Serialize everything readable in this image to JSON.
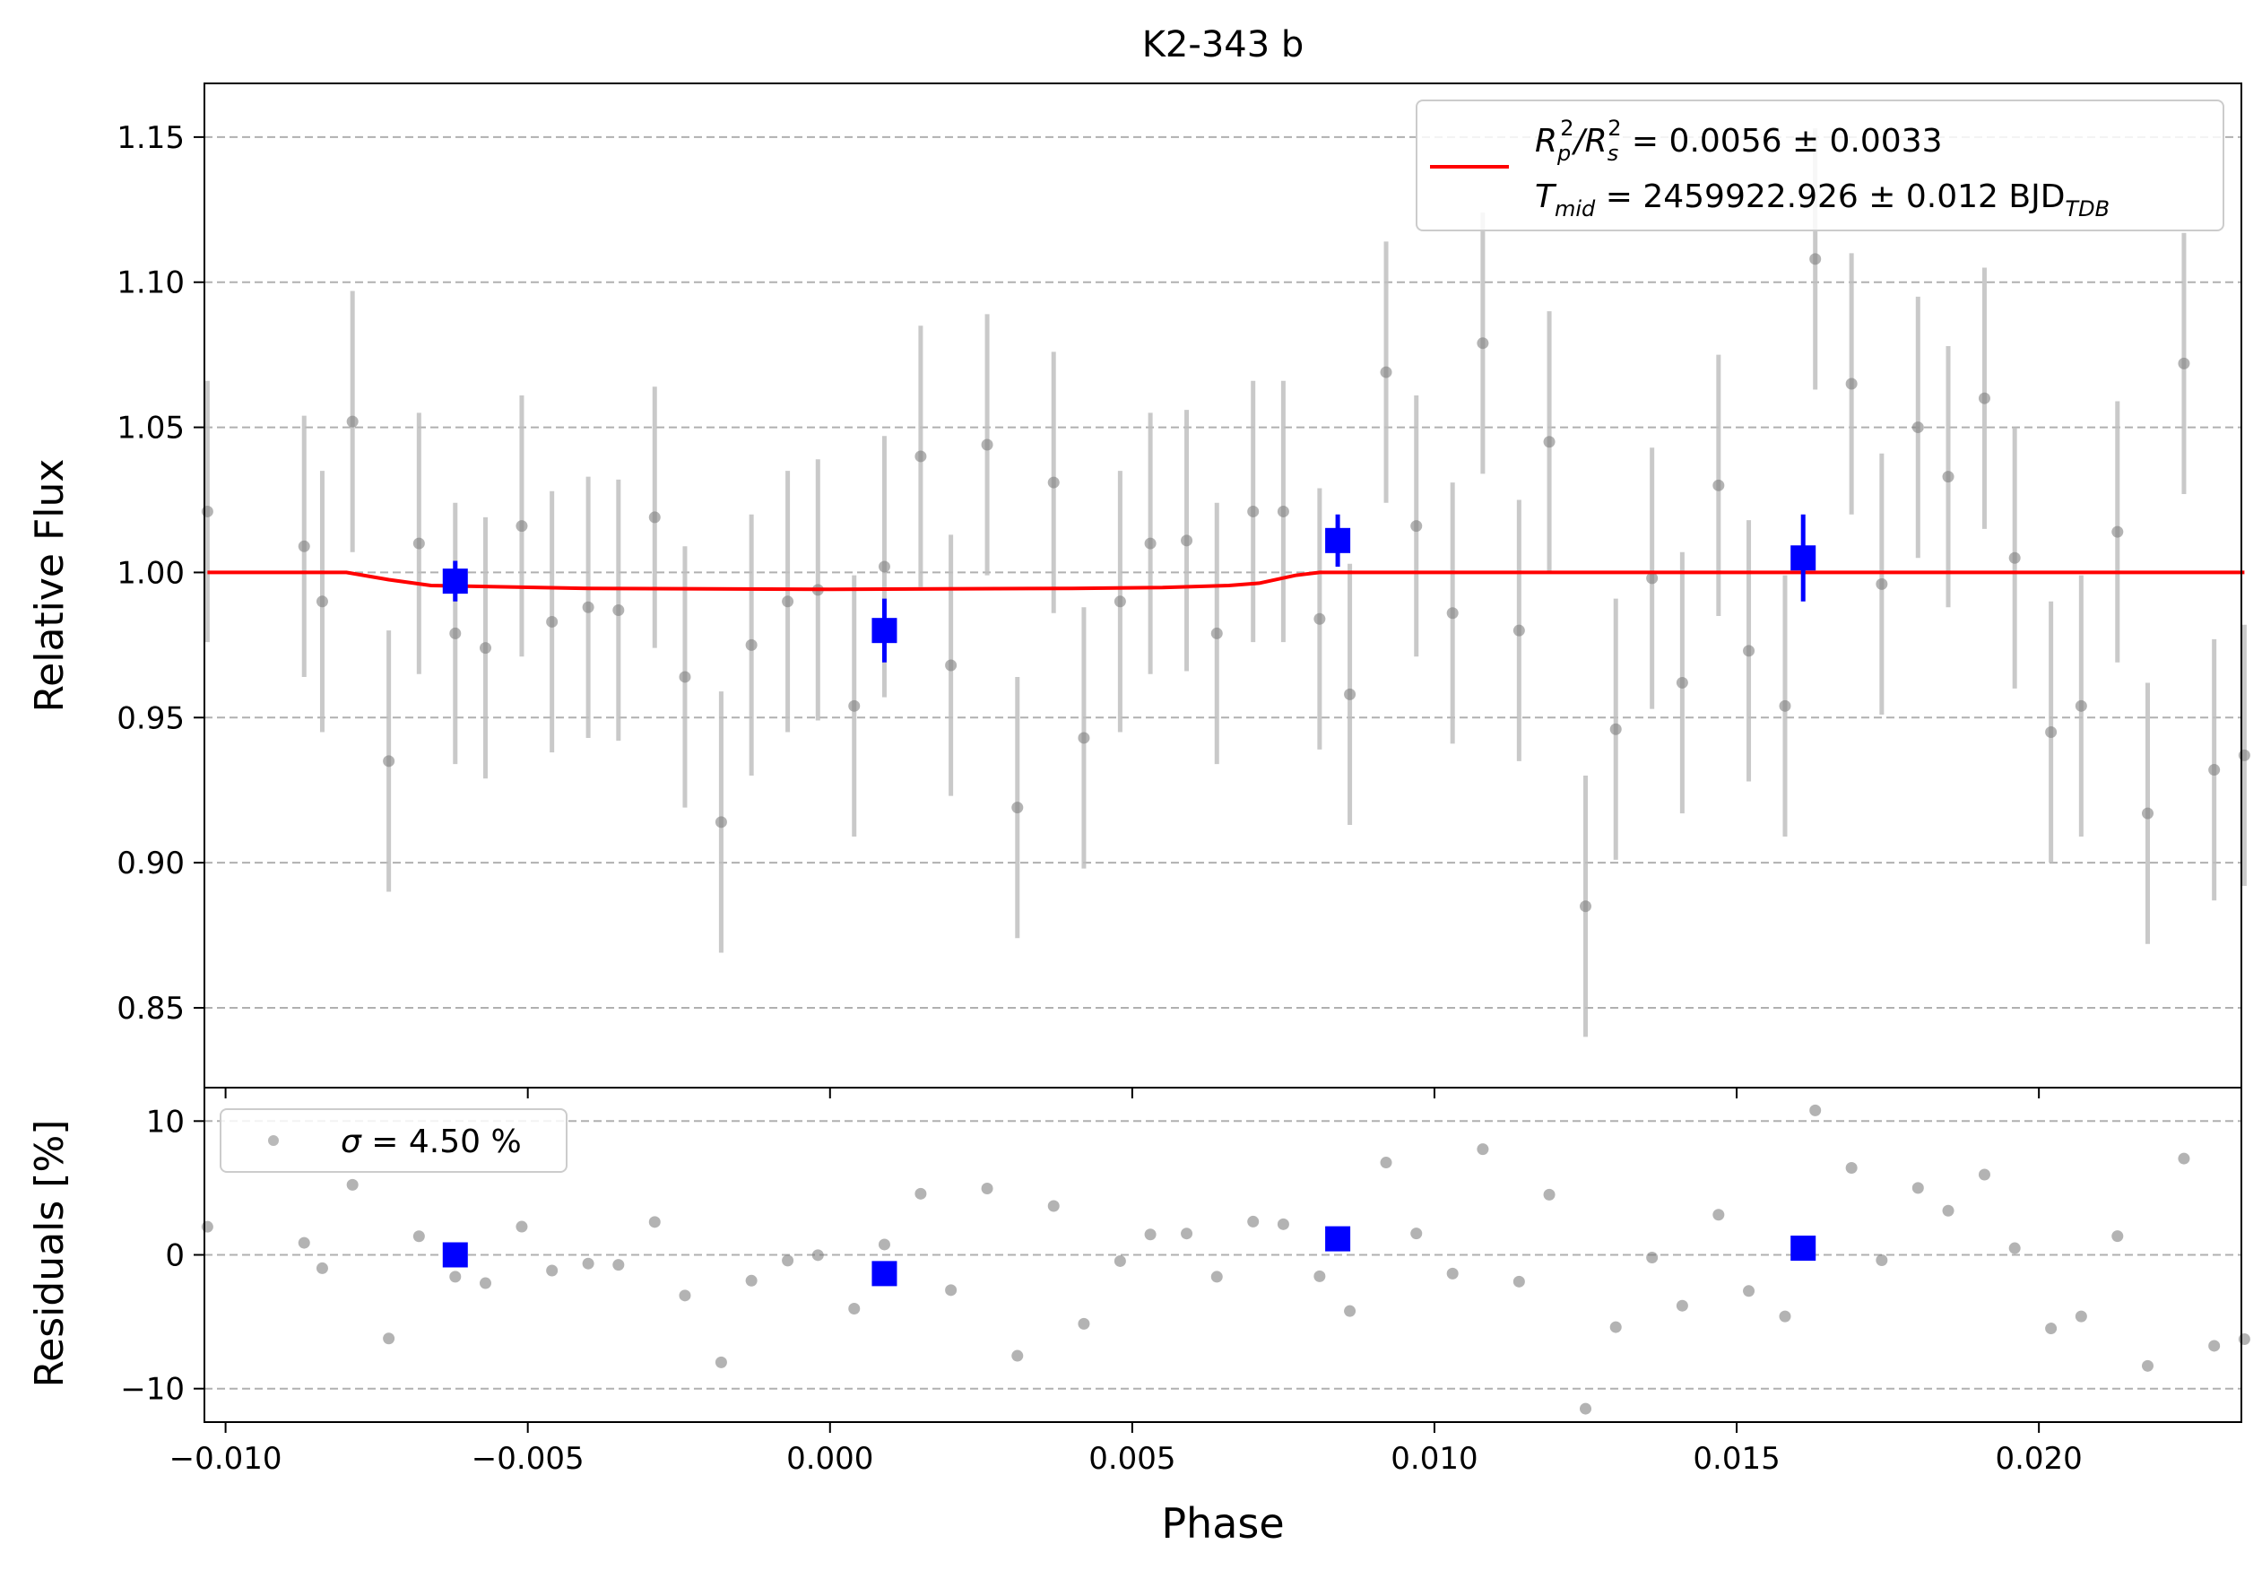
{
  "chart_data": [
    {
      "type": "scatter",
      "title": "K2-343 b",
      "xlabel": "",
      "ylabel": "Relative Flux",
      "xlim": [
        -0.01035,
        0.02335
      ],
      "ylim": [
        0.8225,
        1.1685
      ],
      "xticks": [
        -0.01,
        -0.005,
        0.0,
        0.005,
        0.01,
        0.015,
        0.02
      ],
      "yticks": [
        0.85,
        0.9,
        0.95,
        1.0,
        1.05,
        1.1,
        1.15
      ],
      "grid": "horizontal dashed",
      "legend_position": "top-right",
      "legend": {
        "line1_main": "R",
        "line1_sub_p": "p",
        "line1_sup": "2",
        "line1_sep": "/R",
        "line1_sub_s": "s",
        "line1_rest": " = 0.0056 ± 0.0033",
        "line2_main": "T",
        "line2_sub": "mid",
        "line2_rest": " = 2459922.926 ± 0.012 BJD",
        "line2_sub2": "TDB"
      },
      "colors": {
        "data": "#808080",
        "errorbar": "#c0c0c0",
        "binned": "#0000ff",
        "model": "#ff0000",
        "grid": "#b0b0b0"
      },
      "data": {
        "x": [
          -0.0103,
          -0.0087,
          -0.0084,
          -0.0079,
          -0.0073,
          -0.0068,
          -0.0062,
          -0.0057,
          -0.0051,
          -0.0046,
          -0.004,
          -0.0035,
          -0.0029,
          -0.0024,
          -0.0018,
          -0.0013,
          -0.0007,
          -0.0002,
          0.0004,
          0.0009,
          0.0015,
          0.002,
          0.0026,
          0.0031,
          0.0037,
          0.0042,
          0.0048,
          0.0053,
          0.0059,
          0.0064,
          0.007,
          0.0075,
          0.0081,
          0.0086,
          0.0092,
          0.0097,
          0.0103,
          0.0108,
          0.0114,
          0.0119,
          0.0125,
          0.013,
          0.0136,
          0.0141,
          0.0147,
          0.0152,
          0.0158,
          0.0163,
          0.0169,
          0.0174,
          0.018,
          0.0185,
          0.0191,
          0.0196,
          0.0202,
          0.0207,
          0.0213,
          0.0218,
          0.0224,
          0.0229,
          0.0234
        ],
        "y": [
          1.021,
          1.009,
          0.99,
          1.052,
          0.935,
          1.01,
          0.979,
          0.974,
          1.016,
          0.983,
          0.988,
          0.987,
          1.019,
          0.964,
          0.914,
          0.975,
          0.99,
          0.994,
          0.954,
          1.002,
          1.04,
          0.968,
          1.044,
          0.919,
          1.031,
          0.943,
          0.99,
          1.01,
          1.011,
          0.979,
          1.021,
          1.021,
          0.984,
          0.958,
          1.069,
          1.016,
          0.986,
          1.079,
          0.98,
          1.045,
          0.885,
          0.946,
          0.998,
          0.962,
          1.03,
          0.973,
          0.954,
          1.108,
          1.065,
          0.996,
          1.05,
          1.033,
          1.06,
          1.005,
          0.945,
          0.954,
          1.014,
          0.917,
          1.072,
          0.932,
          0.937
        ],
        "yerr": 0.045
      },
      "binned": {
        "x": [
          -0.0062,
          0.0009,
          0.0084,
          0.0161
        ],
        "y": [
          0.997,
          0.98,
          1.011,
          1.005
        ],
        "yerr": [
          0.007,
          0.011,
          0.009,
          0.015
        ]
      },
      "model": {
        "x": [
          -0.0103,
          -0.008,
          -0.0073,
          -0.0066,
          -0.004,
          0.0,
          0.004,
          0.0055,
          0.0066,
          0.0071,
          0.0077,
          0.0081,
          0.0234
        ],
        "y": [
          1.0,
          1.0,
          0.9975,
          0.9955,
          0.9945,
          0.9942,
          0.9945,
          0.9948,
          0.9955,
          0.9963,
          0.999,
          1.0,
          1.0
        ]
      }
    },
    {
      "type": "scatter",
      "title": "",
      "xlabel": "Phase",
      "ylabel": "Residuals [%]",
      "xlim": [
        -0.01035,
        0.02335
      ],
      "ylim": [
        -12.5,
        12.5
      ],
      "xticks": [
        -0.01,
        -0.005,
        0.0,
        0.005,
        0.01,
        0.015,
        0.02
      ],
      "xtick_labels": [
        "−0.010",
        "−0.005",
        "0.000",
        "0.005",
        "0.010",
        "0.015",
        "0.020"
      ],
      "yticks": [
        -10,
        0,
        10
      ],
      "ytick_labels": [
        "−10",
        "0",
        "10"
      ],
      "grid": "horizontal dashed",
      "legend_position": "top-left",
      "legend": {
        "symbol": "σ",
        "text": " = 4.50 %"
      },
      "binned": {
        "x": [
          -0.0062,
          0.0009,
          0.0084,
          0.0161
        ],
        "y": [
          0.0,
          -1.4,
          1.2,
          0.5
        ]
      }
    }
  ]
}
